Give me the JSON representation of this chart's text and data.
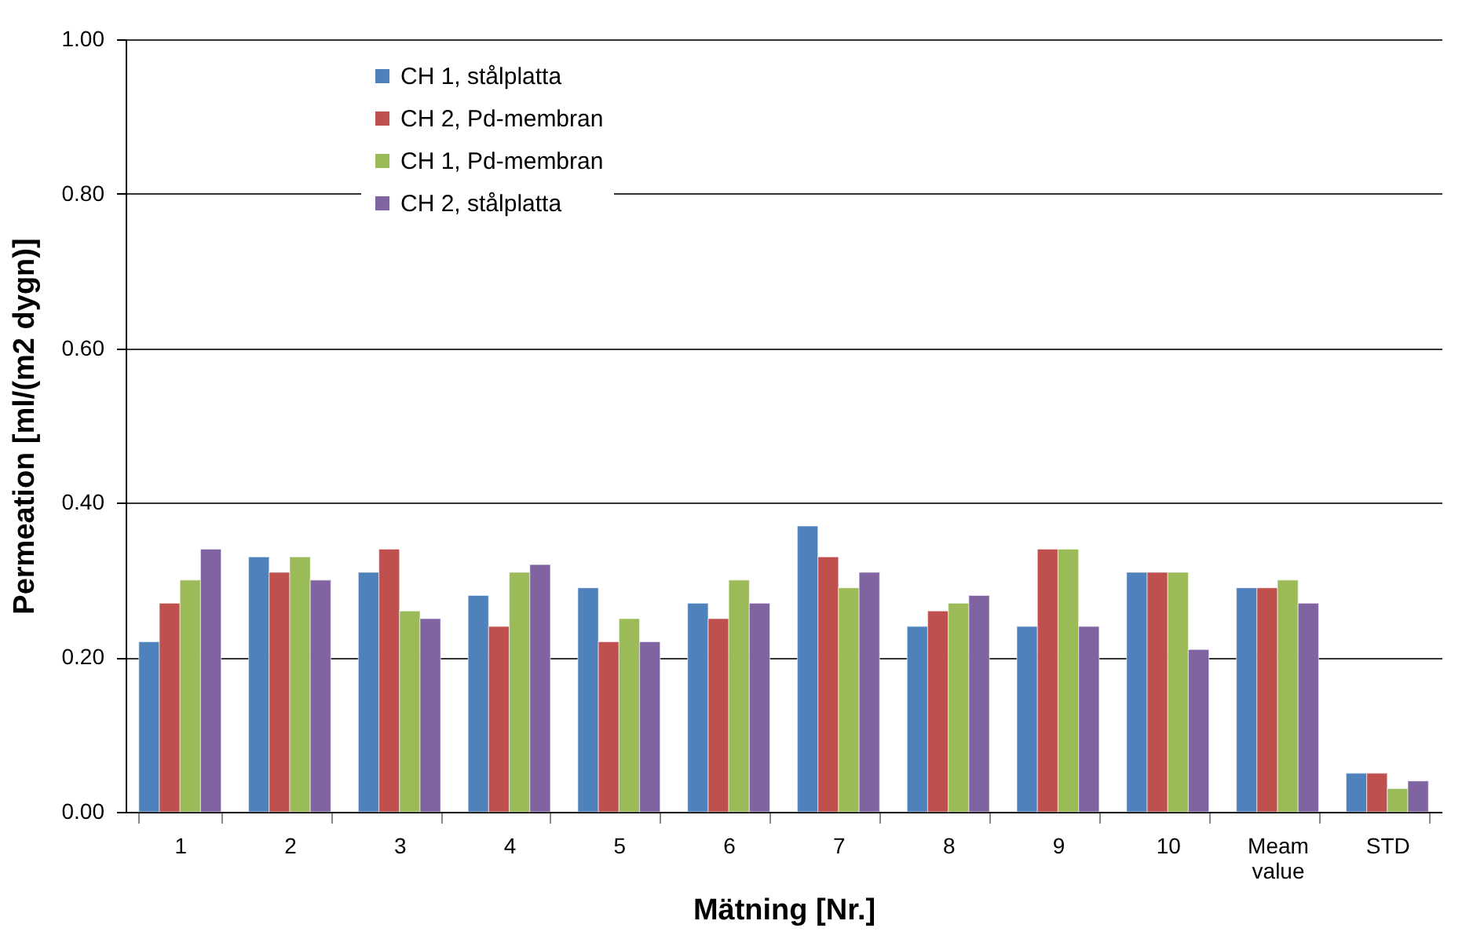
{
  "chart_data": {
    "type": "bar",
    "xlabel": "Mätning [Nr.]",
    "ylabel": "Permeation [ml/(m2 dygn)]",
    "categories": [
      "1",
      "2",
      "3",
      "4",
      "5",
      "6",
      "7",
      "8",
      "9",
      "10",
      "Meam value",
      "STD"
    ],
    "series": [
      {
        "name": "CH 1, stålplatta",
        "color": "#4f81bd",
        "values": [
          0.22,
          0.33,
          0.31,
          0.28,
          0.29,
          0.27,
          0.37,
          0.24,
          0.24,
          0.31,
          0.29,
          0.05
        ]
      },
      {
        "name": "CH 2, Pd-membran",
        "color": "#c0504d",
        "values": [
          0.27,
          0.31,
          0.34,
          0.24,
          0.22,
          0.25,
          0.33,
          0.26,
          0.34,
          0.31,
          0.29,
          0.05
        ]
      },
      {
        "name": "CH 1, Pd-membran",
        "color": "#9bbb59",
        "values": [
          0.3,
          0.33,
          0.26,
          0.31,
          0.25,
          0.3,
          0.29,
          0.27,
          0.34,
          0.31,
          0.3,
          0.03
        ]
      },
      {
        "name": "CH 2, stålplatta",
        "color": "#8064a2",
        "values": [
          0.34,
          0.3,
          0.25,
          0.32,
          0.22,
          0.27,
          0.31,
          0.28,
          0.24,
          0.21,
          0.27,
          0.04
        ]
      }
    ],
    "ylim": [
      0,
      1
    ],
    "yticks": [
      {
        "value": 0,
        "label": "0.00"
      },
      {
        "value": 0.2,
        "label": "0.20"
      },
      {
        "value": 0.4,
        "label": "0.40"
      },
      {
        "value": 0.6,
        "label": "0.60"
      },
      {
        "value": 0.8,
        "label": "0.80"
      },
      {
        "value": 1,
        "label": "1.00"
      }
    ],
    "grid": "y",
    "legend": "top left"
  }
}
